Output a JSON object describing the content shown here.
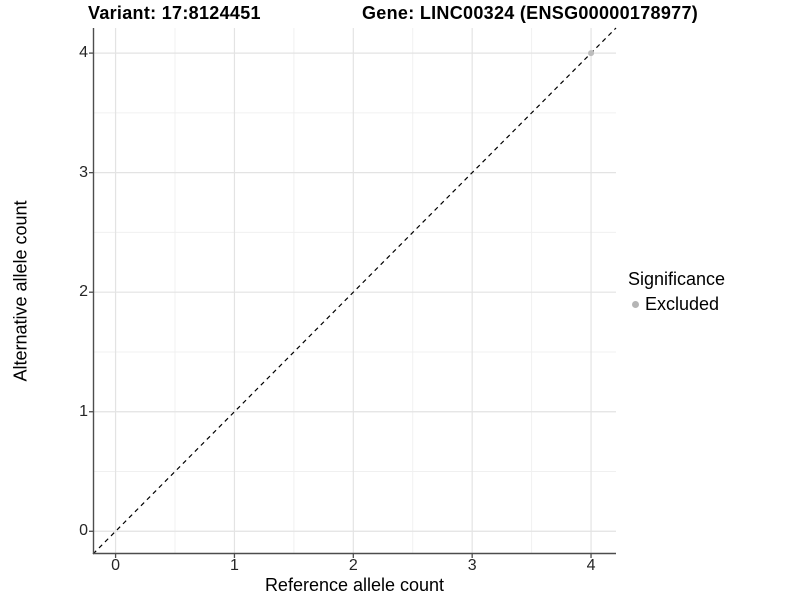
{
  "chart_data": {
    "type": "scatter",
    "title_left": "Variant: 17:8124451",
    "title_right": "Gene: LINC00324 (ENSG00000178977)",
    "xlabel": "Reference allele count",
    "ylabel": "Alternative allele count",
    "xlim": [
      -0.19,
      4.21
    ],
    "ylim": [
      -0.19,
      4.21
    ],
    "x_major_ticks": [
      0,
      1,
      2,
      3,
      4
    ],
    "y_major_ticks": [
      0,
      1,
      2,
      3,
      4
    ],
    "x_minor_ticks": [
      0.5,
      1.5,
      2.5,
      3.5
    ],
    "y_minor_ticks": [
      0.5,
      1.5,
      2.5,
      3.5
    ],
    "grid": true,
    "reference_line": {
      "kind": "identity",
      "style": "dashed",
      "color": "#000000"
    },
    "series": [
      {
        "name": "Excluded",
        "color": "#bdbdbd",
        "points": [
          {
            "x": 4,
            "y": 4
          }
        ]
      }
    ],
    "legend": {
      "title": "Significance",
      "position": "right",
      "items": [
        {
          "label": "Excluded",
          "color": "#b5b5b5"
        }
      ]
    }
  },
  "colors": {
    "background": "#ffffff",
    "grid_major": "#e3e3e3",
    "grid_minor": "#f0f0f0",
    "axis_line": "#4d4d4d",
    "tick_mark": "#4d4d4d",
    "tick_label": "#262626",
    "text": "#000000"
  }
}
